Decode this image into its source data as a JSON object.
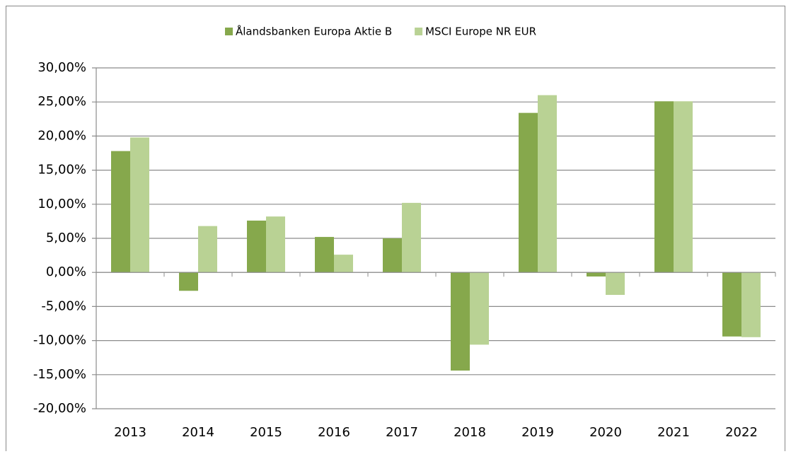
{
  "chart_data": {
    "type": "bar",
    "categories": [
      "2013",
      "2014",
      "2015",
      "2016",
      "2017",
      "2018",
      "2019",
      "2020",
      "2021",
      "2022"
    ],
    "series": [
      {
        "name": "Ålandsbanken Europa Aktie B",
        "color": "#86a84c",
        "values": [
          17.8,
          -2.7,
          7.6,
          5.2,
          5.0,
          -14.4,
          23.4,
          -0.6,
          25.1,
          -9.4
        ]
      },
      {
        "name": "MSCI Europe NR EUR",
        "color": "#b9d294",
        "values": [
          19.8,
          6.8,
          8.2,
          2.6,
          10.2,
          -10.6,
          26.0,
          -3.3,
          25.1,
          -9.5
        ]
      }
    ],
    "ylim": [
      -20,
      30
    ],
    "yticks": [
      {
        "value": -20,
        "label": "-20,00%"
      },
      {
        "value": -15,
        "label": "-15,00%"
      },
      {
        "value": -10,
        "label": "-10,00%"
      },
      {
        "value": -5,
        "label": "-5,00%"
      },
      {
        "value": 0,
        "label": "0,00%"
      },
      {
        "value": 5,
        "label": "5,00%"
      },
      {
        "value": 10,
        "label": "10,00%"
      },
      {
        "value": 15,
        "label": "15,00%"
      },
      {
        "value": 20,
        "label": "20,00%"
      },
      {
        "value": 25,
        "label": "25,00%"
      },
      {
        "value": 30,
        "label": "30,00%"
      }
    ],
    "grid": true,
    "legend": "top"
  }
}
